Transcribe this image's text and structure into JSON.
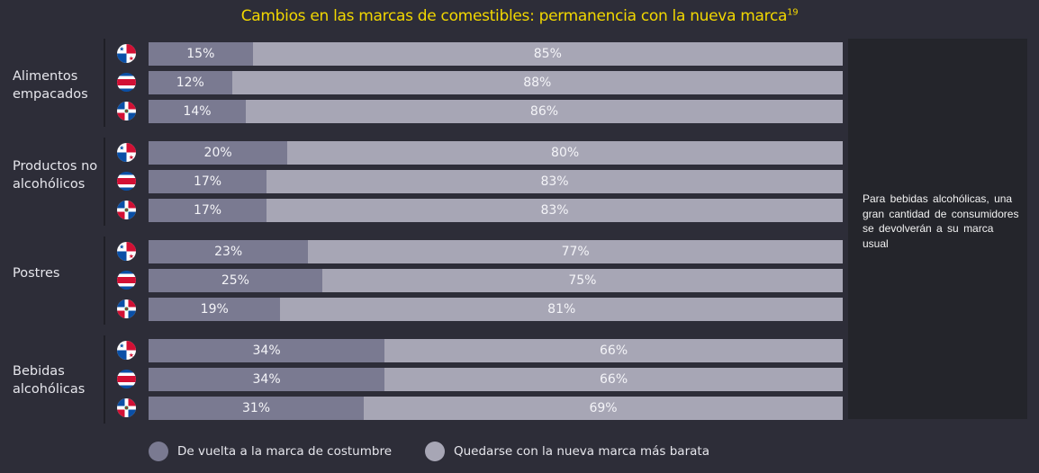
{
  "title": "Cambios en las marcas de comestibles: permanencia con la nueva marca",
  "title_superscript": "19",
  "side_note": "Para bebidas alcohólicas, una gran cantidad de consumidores se devolverán a su marca usual",
  "chart_data": {
    "type": "bar",
    "orientation": "horizontal-stacked-100",
    "title": "Cambios en las marcas de comestibles: permanencia con la nueva marca",
    "countries": [
      "Panamá",
      "Costa Rica",
      "República Dominicana"
    ],
    "series_names": [
      "De vuelta a la marca de costumbre",
      "Quedarse con la nueva marca más barata"
    ],
    "colors": [
      "#7a7a91",
      "#a7a6b5"
    ],
    "legend_position": "bottom",
    "groups": [
      {
        "label": "Alimentos empacados",
        "rows": [
          {
            "country": "Panamá",
            "flag": "panama-flag-icon",
            "values": [
              15,
              85
            ]
          },
          {
            "country": "Costa Rica",
            "flag": "costa-rica-flag-icon",
            "values": [
              12,
              88
            ]
          },
          {
            "country": "República Dominicana",
            "flag": "dominican-republic-flag-icon",
            "values": [
              14,
              86
            ]
          }
        ]
      },
      {
        "label": "Productos no alcohólicos",
        "rows": [
          {
            "country": "Panamá",
            "flag": "panama-flag-icon",
            "values": [
              20,
              80
            ]
          },
          {
            "country": "Costa Rica",
            "flag": "costa-rica-flag-icon",
            "values": [
              17,
              83
            ]
          },
          {
            "country": "República Dominicana",
            "flag": "dominican-republic-flag-icon",
            "values": [
              17,
              83
            ]
          }
        ]
      },
      {
        "label": "Postres",
        "rows": [
          {
            "country": "Panamá",
            "flag": "panama-flag-icon",
            "values": [
              23,
              77
            ]
          },
          {
            "country": "Costa Rica",
            "flag": "costa-rica-flag-icon",
            "values": [
              25,
              75
            ]
          },
          {
            "country": "República Dominicana",
            "flag": "dominican-republic-flag-icon",
            "values": [
              19,
              81
            ]
          }
        ]
      },
      {
        "label": "Bebidas alcohólicas",
        "rows": [
          {
            "country": "Panamá",
            "flag": "panama-flag-icon",
            "values": [
              34,
              66
            ]
          },
          {
            "country": "Costa Rica",
            "flag": "costa-rica-flag-icon",
            "values": [
              34,
              66
            ]
          },
          {
            "country": "República Dominicana",
            "flag": "dominican-republic-flag-icon",
            "values": [
              31,
              69
            ]
          }
        ]
      }
    ]
  }
}
